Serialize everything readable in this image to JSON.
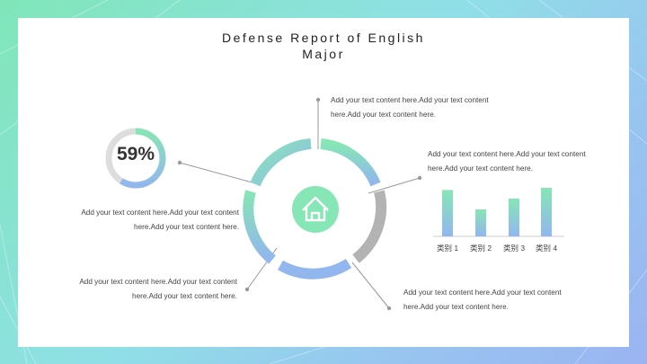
{
  "title": {
    "line1": "Defense Report of English",
    "line2": "Major"
  },
  "donut": {
    "percent_label": "59%",
    "value": 0.59
  },
  "notes": {
    "top": {
      "line1": "Add your text content here.Add your text content",
      "line2": "here.Add your text content here."
    },
    "right": {
      "line1": "Add your text content here.Add your text content",
      "line2": "here.Add your text content here."
    },
    "left": {
      "line1": "Add your text content here.Add your text content",
      "line2": "here.Add your text content here."
    },
    "bottom_left": {
      "line1": "Add your text content here.Add your text content",
      "line2": "here.Add your text content here."
    },
    "bottom_right": {
      "line1": "Add your text content here.Add your text content",
      "line2": "here.Add your text content here."
    }
  },
  "center_icon": "home-icon",
  "colors": {
    "green": "#86e6b5",
    "blue": "#92b6ee",
    "gray": "#b3b3b3",
    "light_gray": "#dddddd"
  },
  "chart_data": {
    "type": "bar",
    "categories": [
      "类别 1",
      "类别 2",
      "类别 3",
      "类别 4"
    ],
    "values": [
      4.3,
      2.5,
      3.5,
      4.5
    ],
    "ylim": [
      0,
      5
    ],
    "grid": false
  }
}
